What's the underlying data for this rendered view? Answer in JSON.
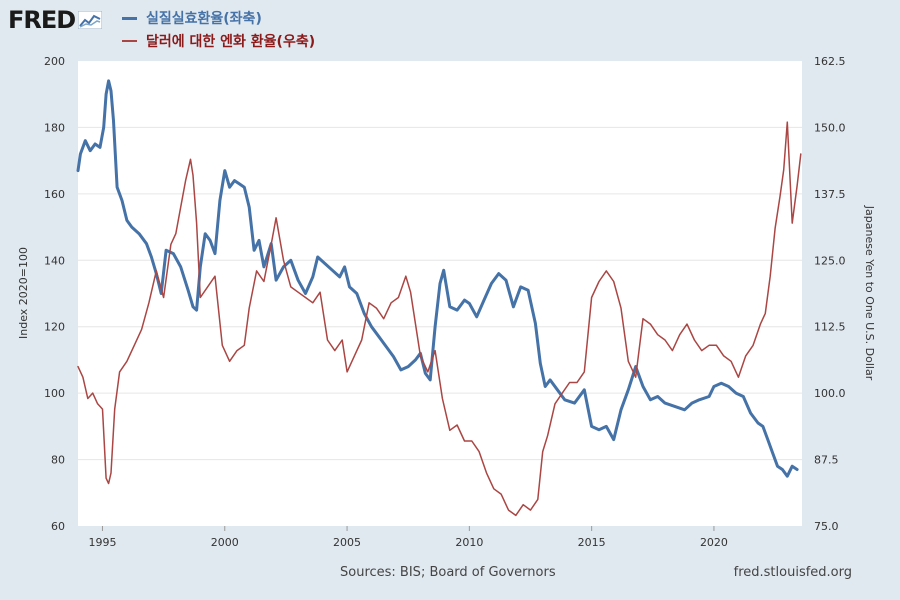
{
  "logo": {
    "text": "FRED",
    "icon": "line-chart-icon"
  },
  "legend": [
    {
      "label": "실질실효환율(좌축)",
      "color": "#4572a7"
    },
    {
      "label": "달러에 대한 엔화 환율(우축)",
      "color": "#aa4643"
    }
  ],
  "footer": {
    "source": "Sources: BIS; Board of Governors",
    "url": "fred.stlouisfed.org"
  },
  "chart_data": {
    "type": "line",
    "xlabel": "",
    "ylabel_left": "Index 2020=100",
    "ylabel_right": "Japanese Yen to One U.S. Dollar",
    "xlim": [
      1994.0,
      2023.6
    ],
    "ylim_left": [
      60,
      200
    ],
    "ylim_right": [
      75.0,
      162.5
    ],
    "x_ticks": [
      1995,
      2000,
      2005,
      2010,
      2015,
      2020
    ],
    "y_ticks_left": [
      "60",
      "80",
      "100",
      "120",
      "140",
      "160",
      "180",
      "200"
    ],
    "y_ticks_right": [
      "75.0",
      "87.5",
      "100.0",
      "112.5",
      "125.0",
      "137.5",
      "150.0",
      "162.5"
    ],
    "grid": true,
    "series": [
      {
        "name": "실질실효환율(좌축)",
        "axis": "left",
        "color": "#4572a7",
        "x": [
          1994.0,
          1994.1,
          1994.3,
          1994.5,
          1994.7,
          1994.9,
          1995.05,
          1995.15,
          1995.25,
          1995.35,
          1995.45,
          1995.6,
          1995.8,
          1996.0,
          1996.2,
          1996.5,
          1996.8,
          1997.0,
          1997.2,
          1997.4,
          1997.6,
          1997.9,
          1998.2,
          1998.5,
          1998.7,
          1998.85,
          1999.0,
          1999.2,
          1999.4,
          1999.6,
          1999.8,
          2000.0,
          2000.2,
          2000.4,
          2000.6,
          2000.8,
          2001.0,
          2001.2,
          2001.4,
          2001.6,
          2001.9,
          2002.1,
          2002.4,
          2002.7,
          2003.0,
          2003.3,
          2003.6,
          2003.8,
          2004.1,
          2004.4,
          2004.7,
          2004.9,
          2005.1,
          2005.4,
          2005.7,
          2006.0,
          2006.3,
          2006.6,
          2006.9,
          2007.2,
          2007.5,
          2007.8,
          2008.0,
          2008.2,
          2008.4,
          2008.6,
          2008.8,
          2008.95,
          2009.2,
          2009.5,
          2009.8,
          2010.0,
          2010.3,
          2010.6,
          2010.9,
          2011.2,
          2011.5,
          2011.8,
          2012.1,
          2012.4,
          2012.7,
          2012.9,
          2013.1,
          2013.3,
          2013.6,
          2013.9,
          2014.3,
          2014.7,
          2015.0,
          2015.3,
          2015.6,
          2015.9,
          2016.2,
          2016.5,
          2016.8,
          2017.1,
          2017.4,
          2017.7,
          2018.0,
          2018.4,
          2018.8,
          2019.1,
          2019.4,
          2019.8,
          2020.0,
          2020.3,
          2020.6,
          2020.9,
          2021.2,
          2021.5,
          2021.8,
          2022.0,
          2022.2,
          2022.4,
          2022.6,
          2022.8,
          2023.0,
          2023.2,
          2023.4
        ],
        "values": [
          167,
          172,
          176,
          173,
          175,
          174,
          180,
          190,
          194,
          191,
          182,
          162,
          158,
          152,
          150,
          148,
          145,
          141,
          136,
          130,
          143,
          142,
          138,
          131,
          126,
          125,
          138,
          148,
          146,
          142,
          158,
          167,
          162,
          164,
          163,
          162,
          156,
          143,
          146,
          138,
          145,
          134,
          138,
          140,
          134,
          130,
          135,
          141,
          139,
          137,
          135,
          138,
          132,
          130,
          124,
          120,
          117,
          114,
          111,
          107,
          108,
          110,
          112,
          106,
          104,
          120,
          133,
          137,
          126,
          125,
          128,
          127,
          123,
          128,
          133,
          136,
          134,
          126,
          132,
          131,
          121,
          109,
          102,
          104,
          101,
          98,
          97,
          101,
          90,
          89,
          90,
          86,
          95,
          101,
          108,
          102,
          98,
          99,
          97,
          96,
          95,
          97,
          98,
          99,
          102,
          103,
          102,
          100,
          99,
          94,
          91,
          90,
          86,
          82,
          78,
          77,
          75,
          78,
          77
        ]
      },
      {
        "name": "달러에 대한 엔화 환율(우축)",
        "axis": "right",
        "color": "#aa4643",
        "x": [
          1994.0,
          1994.2,
          1994.4,
          1994.6,
          1994.8,
          1995.0,
          1995.15,
          1995.25,
          1995.35,
          1995.5,
          1995.7,
          1996.0,
          1996.3,
          1996.6,
          1996.9,
          1997.2,
          1997.5,
          1997.8,
          1998.0,
          1998.2,
          1998.4,
          1998.6,
          1998.7,
          1998.85,
          1999.0,
          1999.3,
          1999.6,
          1999.9,
          2000.2,
          2000.5,
          2000.8,
          2001.0,
          2001.3,
          2001.6,
          2001.9,
          2002.1,
          2002.4,
          2002.7,
          2003.0,
          2003.3,
          2003.6,
          2003.9,
          2004.2,
          2004.5,
          2004.8,
          2005.0,
          2005.3,
          2005.6,
          2005.9,
          2006.2,
          2006.5,
          2006.8,
          2007.1,
          2007.4,
          2007.6,
          2007.8,
          2008.0,
          2008.3,
          2008.6,
          2008.9,
          2009.2,
          2009.5,
          2009.8,
          2010.1,
          2010.4,
          2010.7,
          2011.0,
          2011.3,
          2011.6,
          2011.9,
          2012.2,
          2012.5,
          2012.8,
          2013.0,
          2013.2,
          2013.5,
          2013.8,
          2014.1,
          2014.4,
          2014.7,
          2015.0,
          2015.3,
          2015.6,
          2015.9,
          2016.2,
          2016.5,
          2016.8,
          2017.1,
          2017.4,
          2017.7,
          2018.0,
          2018.3,
          2018.6,
          2018.9,
          2019.2,
          2019.5,
          2019.8,
          2020.1,
          2020.4,
          2020.7,
          2021.0,
          2021.3,
          2021.6,
          2021.9,
          2022.1,
          2022.3,
          2022.5,
          2022.7,
          2022.85,
          2023.0,
          2023.2,
          2023.4,
          2023.55
        ],
        "values": [
          105,
          103,
          99,
          100,
          98,
          97,
          84,
          83,
          85,
          97,
          104,
          106,
          109,
          112,
          117,
          123,
          118,
          128,
          130,
          135,
          140,
          144,
          141,
          132,
          118,
          120,
          122,
          109,
          106,
          108,
          109,
          116,
          123,
          121,
          128,
          133,
          125,
          120,
          119,
          118,
          117,
          119,
          110,
          108,
          110,
          104,
          107,
          110,
          117,
          116,
          114,
          117,
          118,
          122,
          119,
          113,
          107,
          104,
          108,
          99,
          93,
          94,
          91,
          91,
          89,
          85,
          82,
          81,
          78,
          77,
          79,
          78,
          80,
          89,
          92,
          98,
          100,
          102,
          102,
          104,
          118,
          121,
          123,
          121,
          116,
          106,
          103,
          114,
          113,
          111,
          110,
          108,
          111,
          113,
          110,
          108,
          109,
          109,
          107,
          106,
          103,
          107,
          109,
          113,
          115,
          122,
          131,
          137,
          142,
          151,
          132,
          139,
          145
        ]
      }
    ]
  }
}
